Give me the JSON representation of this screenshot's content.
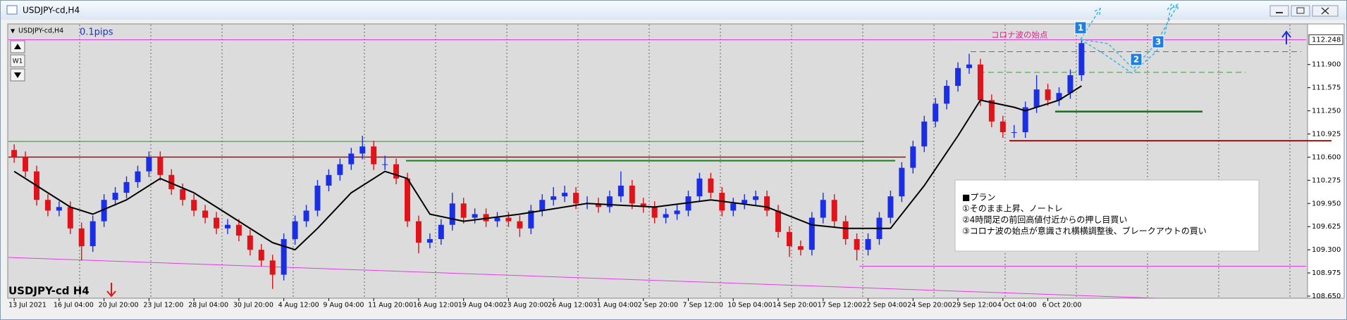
{
  "chart_data": {
    "type": "candlestick",
    "window_title": "USDJPY-cd,H4",
    "title": "USDJPY-cd H4",
    "pips_label": "0.1pips",
    "period_button": "W1",
    "annotation": "コロナ波の始点",
    "plan": [
      "■プラン",
      "①そのまま上昇、ノートレ",
      "②4時間足の前回高値付近からの押し目買い",
      "③コロナ波の始点が意識され横横調整後、ブレークアウトの買い"
    ],
    "markers": [
      "1",
      "2",
      "3"
    ],
    "last_price": 112.248,
    "up_color": "#1a2ee6",
    "down_color": "#e0121a",
    "ylim": [
      108.65,
      112.44
    ],
    "yticks": [
      {
        "value": 111.9,
        "label": "111.900"
      },
      111.575,
      {
        "value": 111.25,
        "label": "111.250"
      },
      110.925,
      {
        "value": 110.6,
        "label": "110.600"
      },
      110.275,
      {
        "value": 109.95,
        "label": "109.950"
      },
      109.625,
      {
        "value": 109.3,
        "label": "109.300"
      },
      108.975,
      {
        "value": 108.65,
        "label": "108.650"
      }
    ],
    "categories": [
      "13 Jul 2021",
      null,
      null,
      null,
      "16 Jul 04:00",
      null,
      null,
      null,
      "20 Jul 20:00",
      null,
      null,
      null,
      "23 Jul 12:00",
      null,
      null,
      null,
      "28 Jul 04:00",
      null,
      null,
      null,
      "30 Jul 20:00",
      null,
      null,
      null,
      "4 Aug 12:00",
      null,
      null,
      null,
      "9 Aug 04:00",
      null,
      null,
      null,
      "11 Aug 20:00",
      null,
      null,
      null,
      "16 Aug 12:00",
      null,
      null,
      null,
      "19 Aug 04:00",
      null,
      null,
      null,
      "23 Aug 20:00",
      null,
      null,
      null,
      "26 Aug 12:00",
      null,
      null,
      null,
      "31 Aug 04:00",
      null,
      null,
      null,
      "2 Sep 20:00",
      null,
      null,
      null,
      "7 Sep 12:00",
      null,
      null,
      null,
      "10 Sep 04:00",
      null,
      null,
      null,
      "14 Sep 20:00",
      null,
      null,
      null,
      "17 Sep 12:00",
      null,
      null,
      null,
      "22 Sep 04:00",
      null,
      null,
      null,
      "24 Sep 20:00",
      null,
      null,
      null,
      "29 Sep 12:00",
      null,
      null,
      null,
      "4 Oct 04:00",
      null,
      null,
      null,
      "6 Oct 20:00",
      null,
      null,
      null
    ],
    "open": [
      110.7,
      110.6,
      110.4,
      110.0,
      109.85,
      109.9,
      109.6,
      109.35,
      109.7,
      110.0,
      110.1,
      110.25,
      110.4,
      110.6,
      110.35,
      110.15,
      110.0,
      109.85,
      109.75,
      109.6,
      109.65,
      109.5,
      109.3,
      109.15,
      108.95,
      109.45,
      109.7,
      109.85,
      110.2,
      110.35,
      110.5,
      110.65,
      110.75,
      110.5,
      110.5,
      110.3,
      109.7,
      109.4,
      109.45,
      109.65,
      109.95,
      109.75,
      109.8,
      109.7,
      109.75,
      109.7,
      109.6,
      109.85,
      110.0,
      110.05,
      110.1,
      109.95,
      109.95,
      109.9,
      110.05,
      110.2,
      109.95,
      109.9,
      109.75,
      109.8,
      109.85,
      110.05,
      110.3,
      110.1,
      109.85,
      109.95,
      110.0,
      110.05,
      109.85,
      109.55,
      109.35,
      109.3,
      109.75,
      110.0,
      109.7,
      109.45,
      109.3,
      109.45,
      109.75,
      110.05,
      110.45,
      110.75,
      111.1,
      111.35,
      111.6,
      111.85,
      111.9,
      111.4,
      111.1,
      110.95,
      110.95,
      111.3,
      111.55,
      111.4,
      111.5,
      111.75
    ],
    "high": [
      110.78,
      110.68,
      110.48,
      110.08,
      109.98,
      109.98,
      109.68,
      109.78,
      110.08,
      110.18,
      110.33,
      110.48,
      110.68,
      110.68,
      110.43,
      110.23,
      110.08,
      109.93,
      109.83,
      109.73,
      109.73,
      109.58,
      109.38,
      109.23,
      109.53,
      109.78,
      109.93,
      110.28,
      110.43,
      110.58,
      110.73,
      110.9,
      110.83,
      110.62,
      110.58,
      110.38,
      109.78,
      109.53,
      109.73,
      110.1,
      110.03,
      109.88,
      109.88,
      109.83,
      109.83,
      109.78,
      109.93,
      110.08,
      110.18,
      110.2,
      110.18,
      110.05,
      110.03,
      110.13,
      110.4,
      110.28,
      110.03,
      109.98,
      109.88,
      109.93,
      110.13,
      110.38,
      110.38,
      110.18,
      110.03,
      110.08,
      110.13,
      110.13,
      109.93,
      109.63,
      109.43,
      109.83,
      110.1,
      110.08,
      109.78,
      109.53,
      109.53,
      109.83,
      110.13,
      110.53,
      110.83,
      111.18,
      111.43,
      111.68,
      111.93,
      112.05,
      111.98,
      111.48,
      111.18,
      111.05,
      111.38,
      111.75,
      111.63,
      111.58,
      111.83,
      112.25
    ],
    "low": [
      110.52,
      110.32,
      109.92,
      109.77,
      109.77,
      109.52,
      109.15,
      109.27,
      109.62,
      109.92,
      110.02,
      110.17,
      110.32,
      110.27,
      110.07,
      109.92,
      109.77,
      109.67,
      109.52,
      109.52,
      109.42,
      109.22,
      109.07,
      108.75,
      108.87,
      109.37,
      109.62,
      109.77,
      110.12,
      110.27,
      110.42,
      110.57,
      110.42,
      110.42,
      110.22,
      109.62,
      109.25,
      109.32,
      109.37,
      109.57,
      109.67,
      109.67,
      109.62,
      109.62,
      109.62,
      109.48,
      109.52,
      109.77,
      109.92,
      109.97,
      109.87,
      109.87,
      109.82,
      109.82,
      109.97,
      109.87,
      109.82,
      109.67,
      109.67,
      109.72,
      109.77,
      109.97,
      110.02,
      109.77,
      109.77,
      109.87,
      109.92,
      109.77,
      109.47,
      109.2,
      109.22,
      109.22,
      109.67,
      109.62,
      109.37,
      109.15,
      109.22,
      109.37,
      109.67,
      109.97,
      110.37,
      110.67,
      111.02,
      111.27,
      111.52,
      111.77,
      111.32,
      111.02,
      110.87,
      110.87,
      110.87,
      111.22,
      111.32,
      111.32,
      111.42,
      111.67
    ],
    "close": [
      110.6,
      110.4,
      110.0,
      109.85,
      109.9,
      109.6,
      109.35,
      109.7,
      110.0,
      110.1,
      110.25,
      110.4,
      110.6,
      110.35,
      110.15,
      110.0,
      109.85,
      109.75,
      109.6,
      109.65,
      109.5,
      109.3,
      109.15,
      108.95,
      109.45,
      109.7,
      109.85,
      110.2,
      110.35,
      110.5,
      110.65,
      110.75,
      110.5,
      110.5,
      110.3,
      109.7,
      109.4,
      109.45,
      109.65,
      109.95,
      109.75,
      109.8,
      109.7,
      109.75,
      109.7,
      109.6,
      109.85,
      110.0,
      110.05,
      110.1,
      109.95,
      109.95,
      109.9,
      110.05,
      110.2,
      109.95,
      109.9,
      109.75,
      109.8,
      109.85,
      110.05,
      110.3,
      110.1,
      109.85,
      109.95,
      110.0,
      110.05,
      109.85,
      109.55,
      109.35,
      109.3,
      109.75,
      110.0,
      109.7,
      109.45,
      109.3,
      109.45,
      109.75,
      110.05,
      110.45,
      110.75,
      111.1,
      111.35,
      111.6,
      111.85,
      111.9,
      111.4,
      111.1,
      110.95,
      110.95,
      111.3,
      111.55,
      111.4,
      111.5,
      111.75,
      112.2
    ],
    "indicators": [
      {
        "color": "#000000",
        "x": [
          0,
          2,
          5,
          7,
          10,
          13,
          16,
          19,
          23,
          25,
          27,
          30,
          33,
          35,
          37,
          40,
          45,
          51,
          57,
          62,
          67,
          71,
          74,
          78,
          81,
          84,
          86,
          89,
          90,
          93,
          95
        ],
        "values": [
          110.4,
          110.2,
          109.9,
          109.8,
          110.0,
          110.3,
          110.1,
          109.8,
          109.4,
          109.3,
          109.6,
          110.1,
          110.4,
          110.3,
          109.8,
          109.7,
          109.8,
          109.95,
          109.9,
          110.0,
          109.9,
          109.65,
          109.6,
          109.6,
          110.2,
          110.9,
          111.4,
          111.3,
          111.25,
          111.4,
          111.6
        ]
      }
    ],
    "levels": [
      {
        "value": 112.248,
        "color": "#e23ee6"
      },
      {
        "value": 110.82,
        "color": "#2e8b2e"
      },
      {
        "value": 110.6,
        "color": "#a01010"
      },
      {
        "value": 110.55,
        "color": "#1e7a1e"
      },
      {
        "value": 110.83,
        "color": "#a01010"
      },
      {
        "value": 111.24,
        "color": "#127312"
      },
      {
        "value": 112.08,
        "color": "#b05050"
      },
      {
        "value": 111.79,
        "color": "#3a9a3a"
      },
      {
        "value": 109.07,
        "color": "#e23ee6"
      }
    ]
  }
}
